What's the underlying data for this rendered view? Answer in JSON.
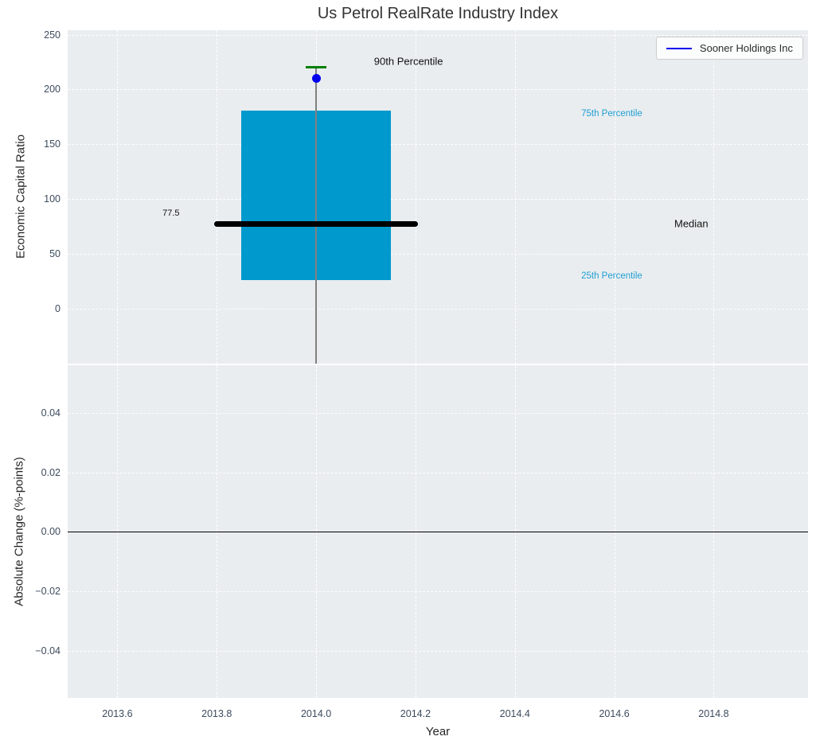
{
  "chart_data": {
    "type": "boxplot",
    "title": "Us Petrol RealRate Industry Index",
    "legend": {
      "label": "Sooner Holdings Inc",
      "position": "upper right"
    },
    "xlabel": "Year",
    "xlim": [
      2013.5,
      2014.99
    ],
    "grid": "white-dashed on light-gray panels",
    "x_ticks": {
      "values": [
        2013.6,
        2013.8,
        2014.0,
        2014.2,
        2014.4,
        2014.6,
        2014.8
      ],
      "labels": [
        "2013.6",
        "2013.8",
        "2014.0",
        "2014.2",
        "2014.4",
        "2014.6",
        "2014.8"
      ]
    },
    "top_panel": {
      "ylabel": "Economic Capital Ratio",
      "ylim": [
        -50,
        254
      ],
      "yticks": {
        "values": [
          0,
          50,
          100,
          150,
          200,
          250
        ],
        "labels": [
          "0",
          "50",
          "100",
          "150",
          "200",
          "250"
        ]
      },
      "box": {
        "x": 2014.0,
        "width": 0.3,
        "q1": 26,
        "q3": 181,
        "median": 77.5,
        "p90": 220,
        "whisker_extends_below_axis": true
      },
      "median_line": {
        "x0": 2013.8,
        "x1": 2014.2,
        "y": 77.5
      },
      "company_point": {
        "x": 2014.0,
        "y": 210
      },
      "annotations": [
        {
          "text": "90th Percentile",
          "x": 2014.186,
          "y": 226,
          "kind": "primary",
          "color": "#111111"
        },
        {
          "text": "75th Percentile",
          "x": 2014.595,
          "y": 178,
          "kind": "secondary",
          "color": "#219fd4"
        },
        {
          "text": "Median",
          "x": 2014.755,
          "y": 77.5,
          "kind": "primary",
          "color": "#111111"
        },
        {
          "text": "25th Percentile",
          "x": 2014.595,
          "y": 30,
          "kind": "secondary",
          "color": "#219fd4"
        },
        {
          "text": "77.5",
          "x": 2013.708,
          "y": 87,
          "kind": "small",
          "color": "#111111"
        }
      ]
    },
    "bottom_panel": {
      "ylabel": "Absolute Change (%-points)",
      "ylim": [
        -0.0558,
        0.056
      ],
      "yticks": {
        "values": [
          0.04,
          0.02,
          0,
          -0.02,
          -0.04
        ],
        "labels": [
          "0.04",
          "0.02",
          "0.00",
          "−0.02",
          "−0.04"
        ]
      },
      "zero_line": {
        "y": 0
      }
    },
    "colors": {
      "box_fill": "#0099cd",
      "median_line": "#000000",
      "whisker": "#808080",
      "p90_cap": "#008000",
      "company_point": "#0000ee",
      "legend_line": "#0000ee",
      "percentile_label": "#219fd4",
      "tick_label": "#3d4b5d",
      "panel_bg": "#e9edef"
    }
  }
}
